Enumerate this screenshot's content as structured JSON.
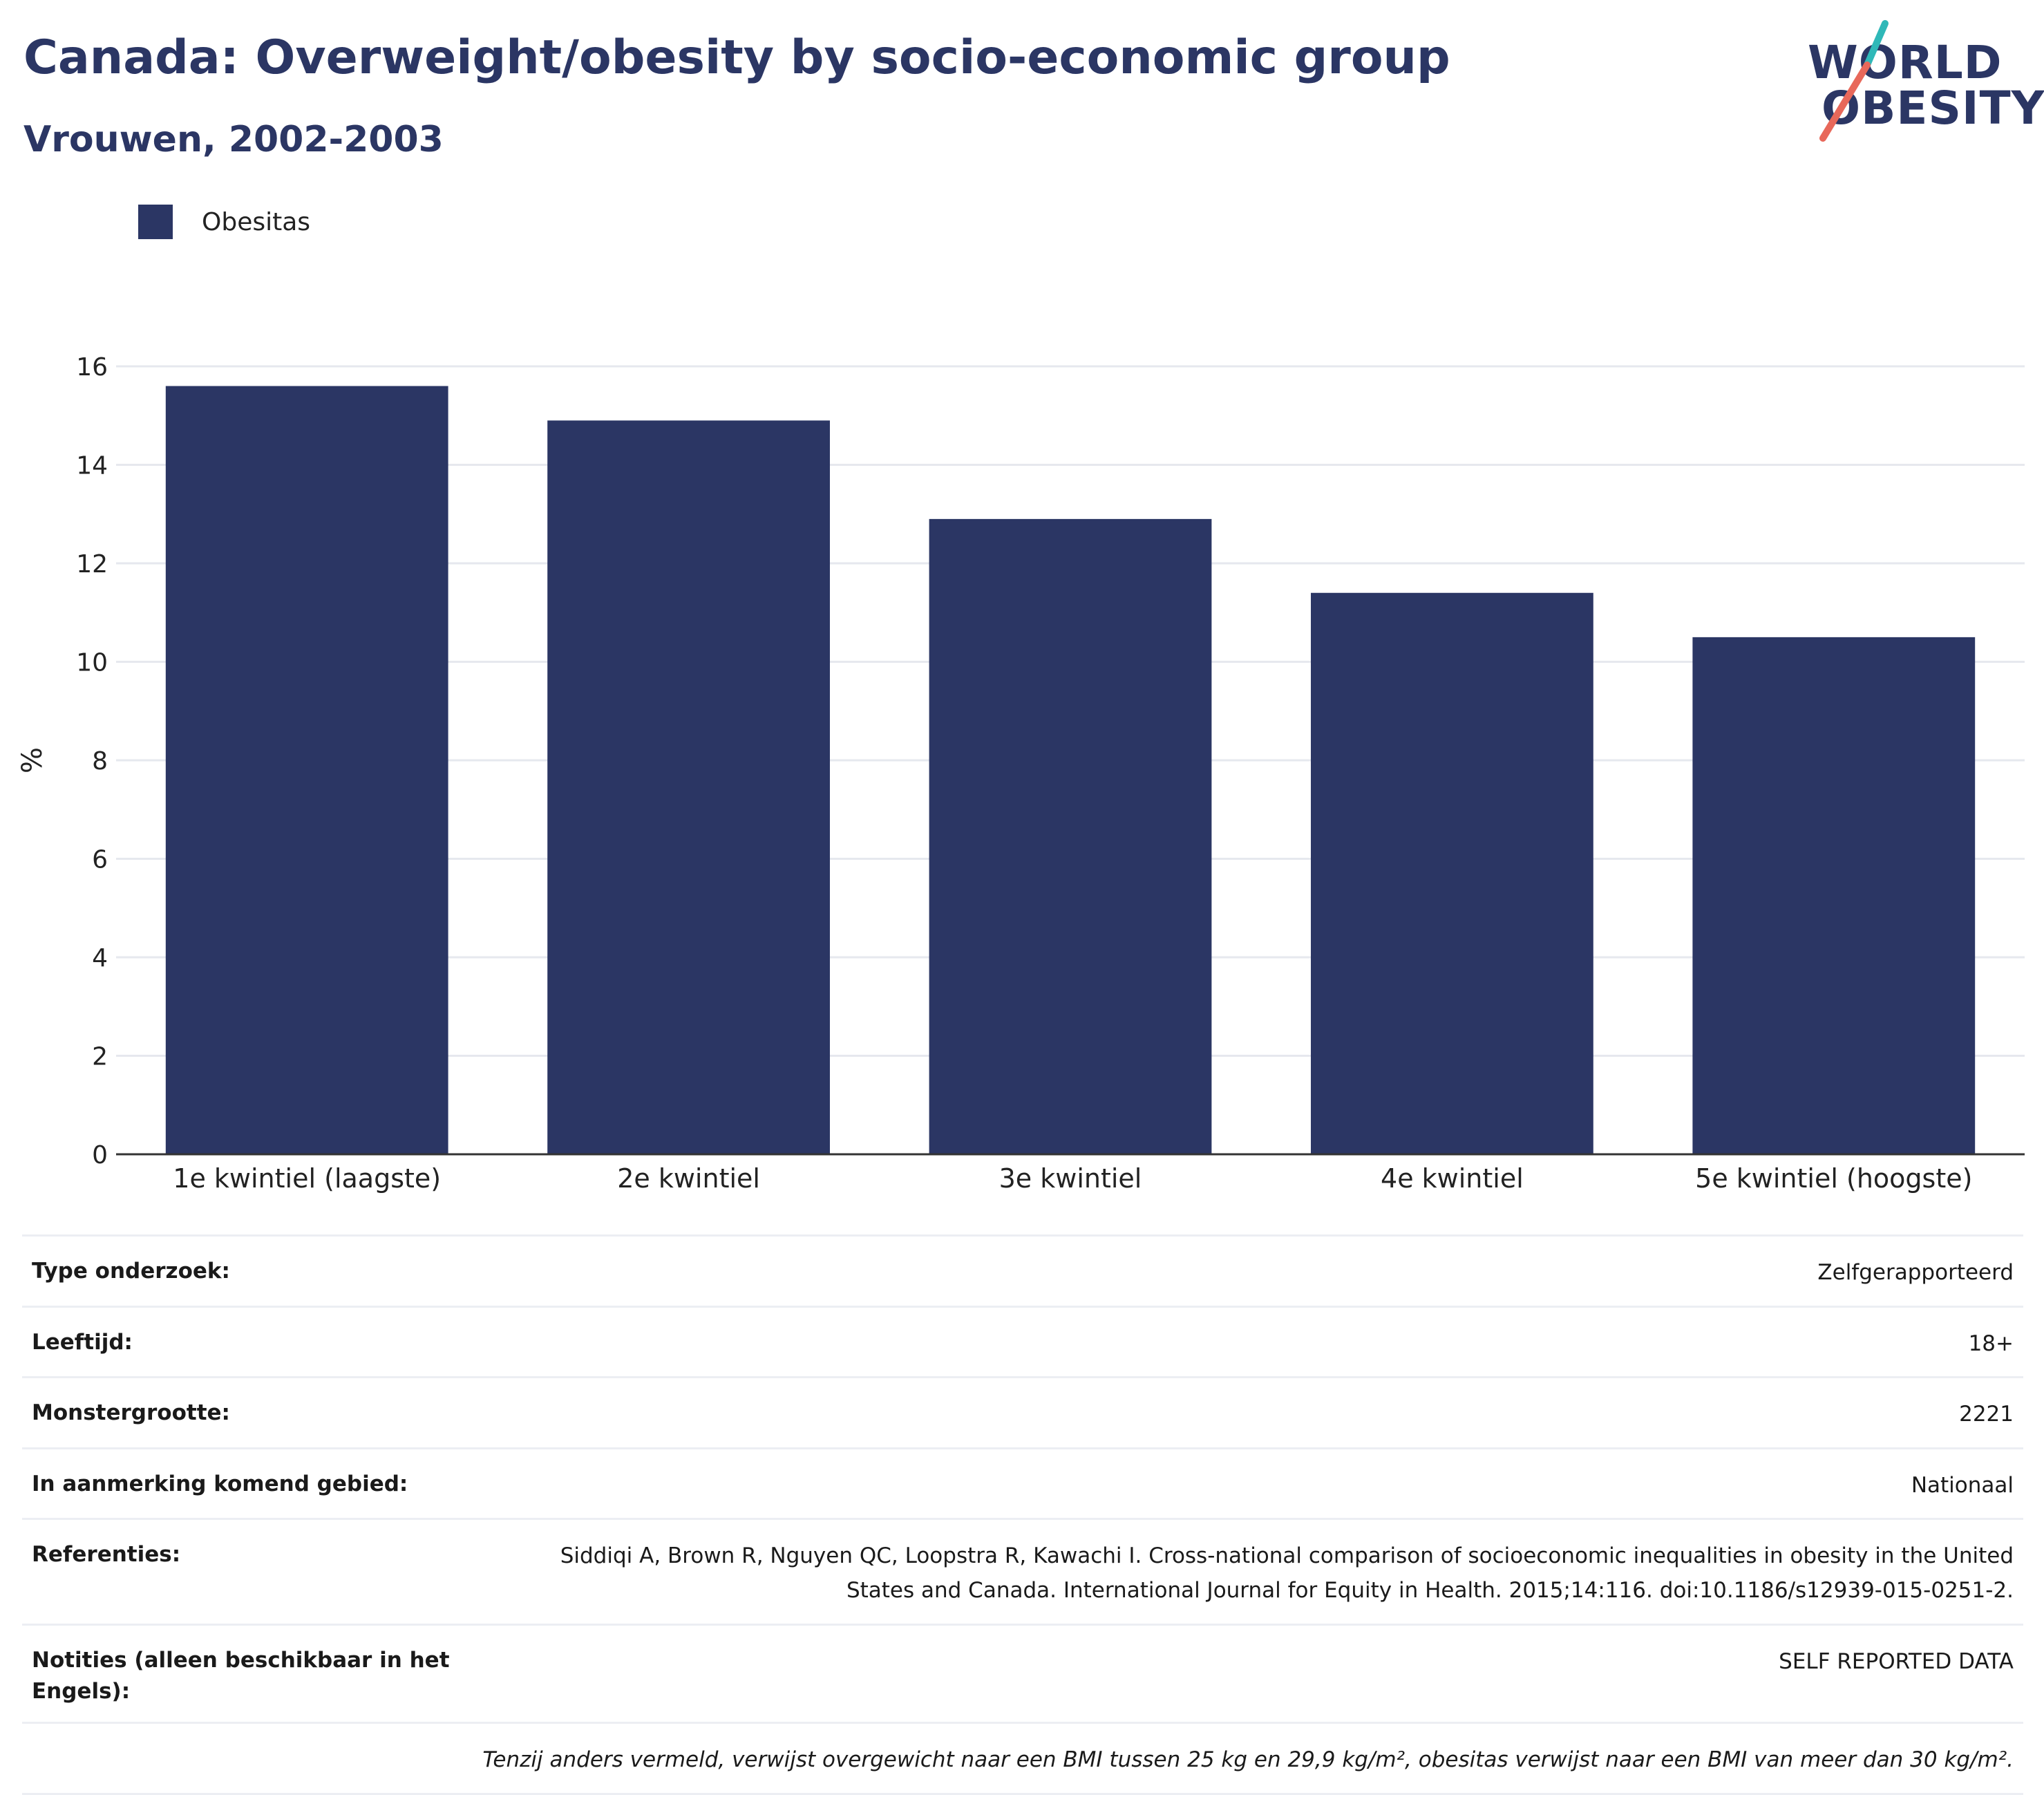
{
  "header": {
    "title": "Canada: Overweight/obesity by socio-economic group",
    "subtitle": "Vrouwen, 2002-2003"
  },
  "logo": {
    "line1": "WORLD",
    "line2": "OBESITY"
  },
  "colors": {
    "bar": "#2b3664",
    "title": "#2b3664",
    "grid": "#e6e8ee",
    "axis": "#333333",
    "logo_teal": "#2fb8b8",
    "logo_coral": "#e8685a"
  },
  "legend": {
    "items": [
      {
        "label": "Obesitas"
      }
    ]
  },
  "chart_data": {
    "type": "bar",
    "categories": [
      "1e kwintiel (laagste)",
      "2e kwintiel",
      "3e kwintiel",
      "4e kwintiel",
      "5e kwintiel (hoogste)"
    ],
    "series": [
      {
        "name": "Obesitas",
        "values": [
          15.6,
          14.9,
          12.9,
          11.4,
          10.5
        ]
      }
    ],
    "ylabel": "%",
    "xlabel": "",
    "ylim": [
      0,
      16
    ],
    "yticks": [
      0,
      2,
      4,
      6,
      8,
      10,
      12,
      14,
      16
    ],
    "grid": true,
    "legend_position": "top-left"
  },
  "info": {
    "rows": [
      {
        "key": "Type onderzoek:",
        "value": "Zelfgerapporteerd"
      },
      {
        "key": "Leeftijd:",
        "value": "18+"
      },
      {
        "key": "Monstergrootte:",
        "value": "2221"
      },
      {
        "key": "In aanmerking komend gebied:",
        "value": "Nationaal"
      },
      {
        "key": "Referenties:",
        "value": "Siddiqi A, Brown R, Nguyen QC, Loopstra R, Kawachi I. Cross-national comparison of socioeconomic inequalities in obesity in the United States and Canada. International Journal for Equity in Health. 2015;14:116. doi:10.1186/s12939-015-0251-2."
      },
      {
        "key": "Notities (alleen beschikbaar in het Engels):",
        "value": "SELF REPORTED DATA"
      }
    ],
    "footnote": "Tenzij anders vermeld, verwijst overgewicht naar een BMI tussen 25 kg en 29,9 kg/m², obesitas verwijst naar een BMI van meer dan 30 kg/m²."
  }
}
